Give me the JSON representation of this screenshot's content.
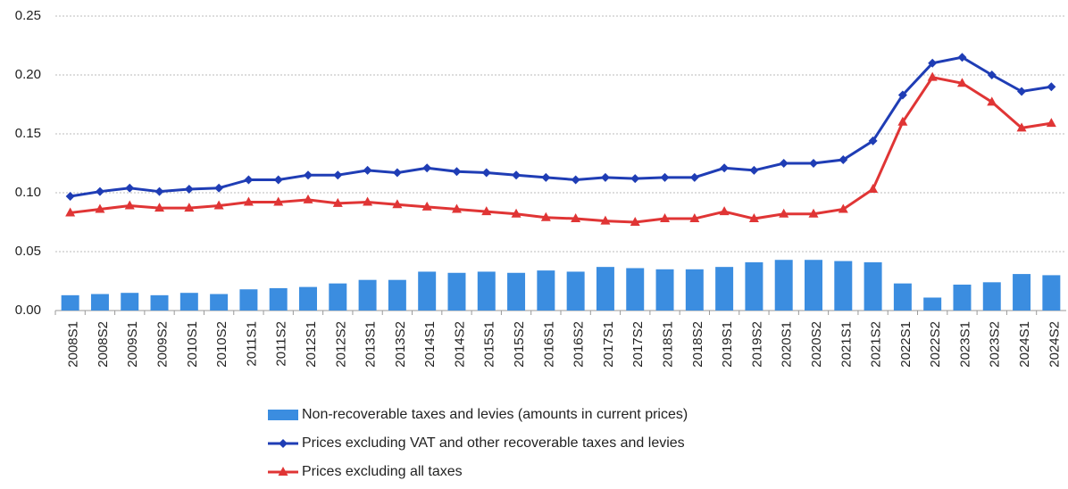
{
  "chart_data": {
    "type": "bar-line",
    "categories": [
      "2008S1",
      "2008S2",
      "2009S1",
      "2009S2",
      "2010S1",
      "2010S2",
      "2011S1",
      "2011S2",
      "2012S1",
      "2012S2",
      "2013S1",
      "2013S2",
      "2014S1",
      "2014S2",
      "2015S1",
      "2015S2",
      "2016S1",
      "2016S2",
      "2017S1",
      "2017S2",
      "2018S1",
      "2018S2",
      "2019S1",
      "2019S2",
      "2020S1",
      "2020S2",
      "2021S1",
      "2021S2",
      "2022S1",
      "2022S2",
      "2023S1",
      "2023S2",
      "2024S1",
      "2024S2"
    ],
    "series": [
      {
        "name": "Non-recoverable taxes and levies (amounts in current prices)",
        "type": "bar",
        "color": "#3b8de0",
        "values": [
          0.013,
          0.014,
          0.015,
          0.013,
          0.015,
          0.014,
          0.018,
          0.019,
          0.02,
          0.023,
          0.026,
          0.026,
          0.033,
          0.032,
          0.033,
          0.032,
          0.034,
          0.033,
          0.037,
          0.036,
          0.035,
          0.035,
          0.037,
          0.041,
          0.043,
          0.043,
          0.042,
          0.041,
          0.023,
          0.011,
          0.022,
          0.024,
          0.031,
          0.03
        ]
      },
      {
        "name": "Prices excluding VAT and other recoverable taxes and levies",
        "type": "line",
        "marker": "diamond",
        "color": "#1f3db5",
        "values": [
          0.097,
          0.101,
          0.104,
          0.101,
          0.103,
          0.104,
          0.111,
          0.111,
          0.115,
          0.115,
          0.119,
          0.117,
          0.121,
          0.118,
          0.117,
          0.115,
          0.113,
          0.111,
          0.113,
          0.112,
          0.113,
          0.113,
          0.121,
          0.119,
          0.125,
          0.125,
          0.128,
          0.144,
          0.183,
          0.21,
          0.215,
          0.2,
          0.186,
          0.19
        ]
      },
      {
        "name": "Prices excluding all taxes",
        "type": "line",
        "marker": "triangle",
        "color": "#e03535",
        "values": [
          0.083,
          0.086,
          0.089,
          0.087,
          0.087,
          0.089,
          0.092,
          0.092,
          0.094,
          0.091,
          0.092,
          0.09,
          0.088,
          0.086,
          0.084,
          0.082,
          0.079,
          0.078,
          0.076,
          0.075,
          0.078,
          0.078,
          0.084,
          0.078,
          0.082,
          0.082,
          0.086,
          0.103,
          0.16,
          0.198,
          0.193,
          0.177,
          0.155,
          0.159
        ]
      }
    ],
    "ylim": [
      0,
      0.25
    ],
    "yticks": [
      {
        "value": 0,
        "label": "0.00"
      },
      {
        "value": 0.05,
        "label": "0.05"
      },
      {
        "value": 0.1,
        "label": "0.10"
      },
      {
        "value": 0.15,
        "label": "0.15"
      },
      {
        "value": 0.2,
        "label": "0.20"
      },
      {
        "value": 0.25,
        "label": "0.25"
      }
    ],
    "grid": true,
    "legend": "bottom"
  }
}
